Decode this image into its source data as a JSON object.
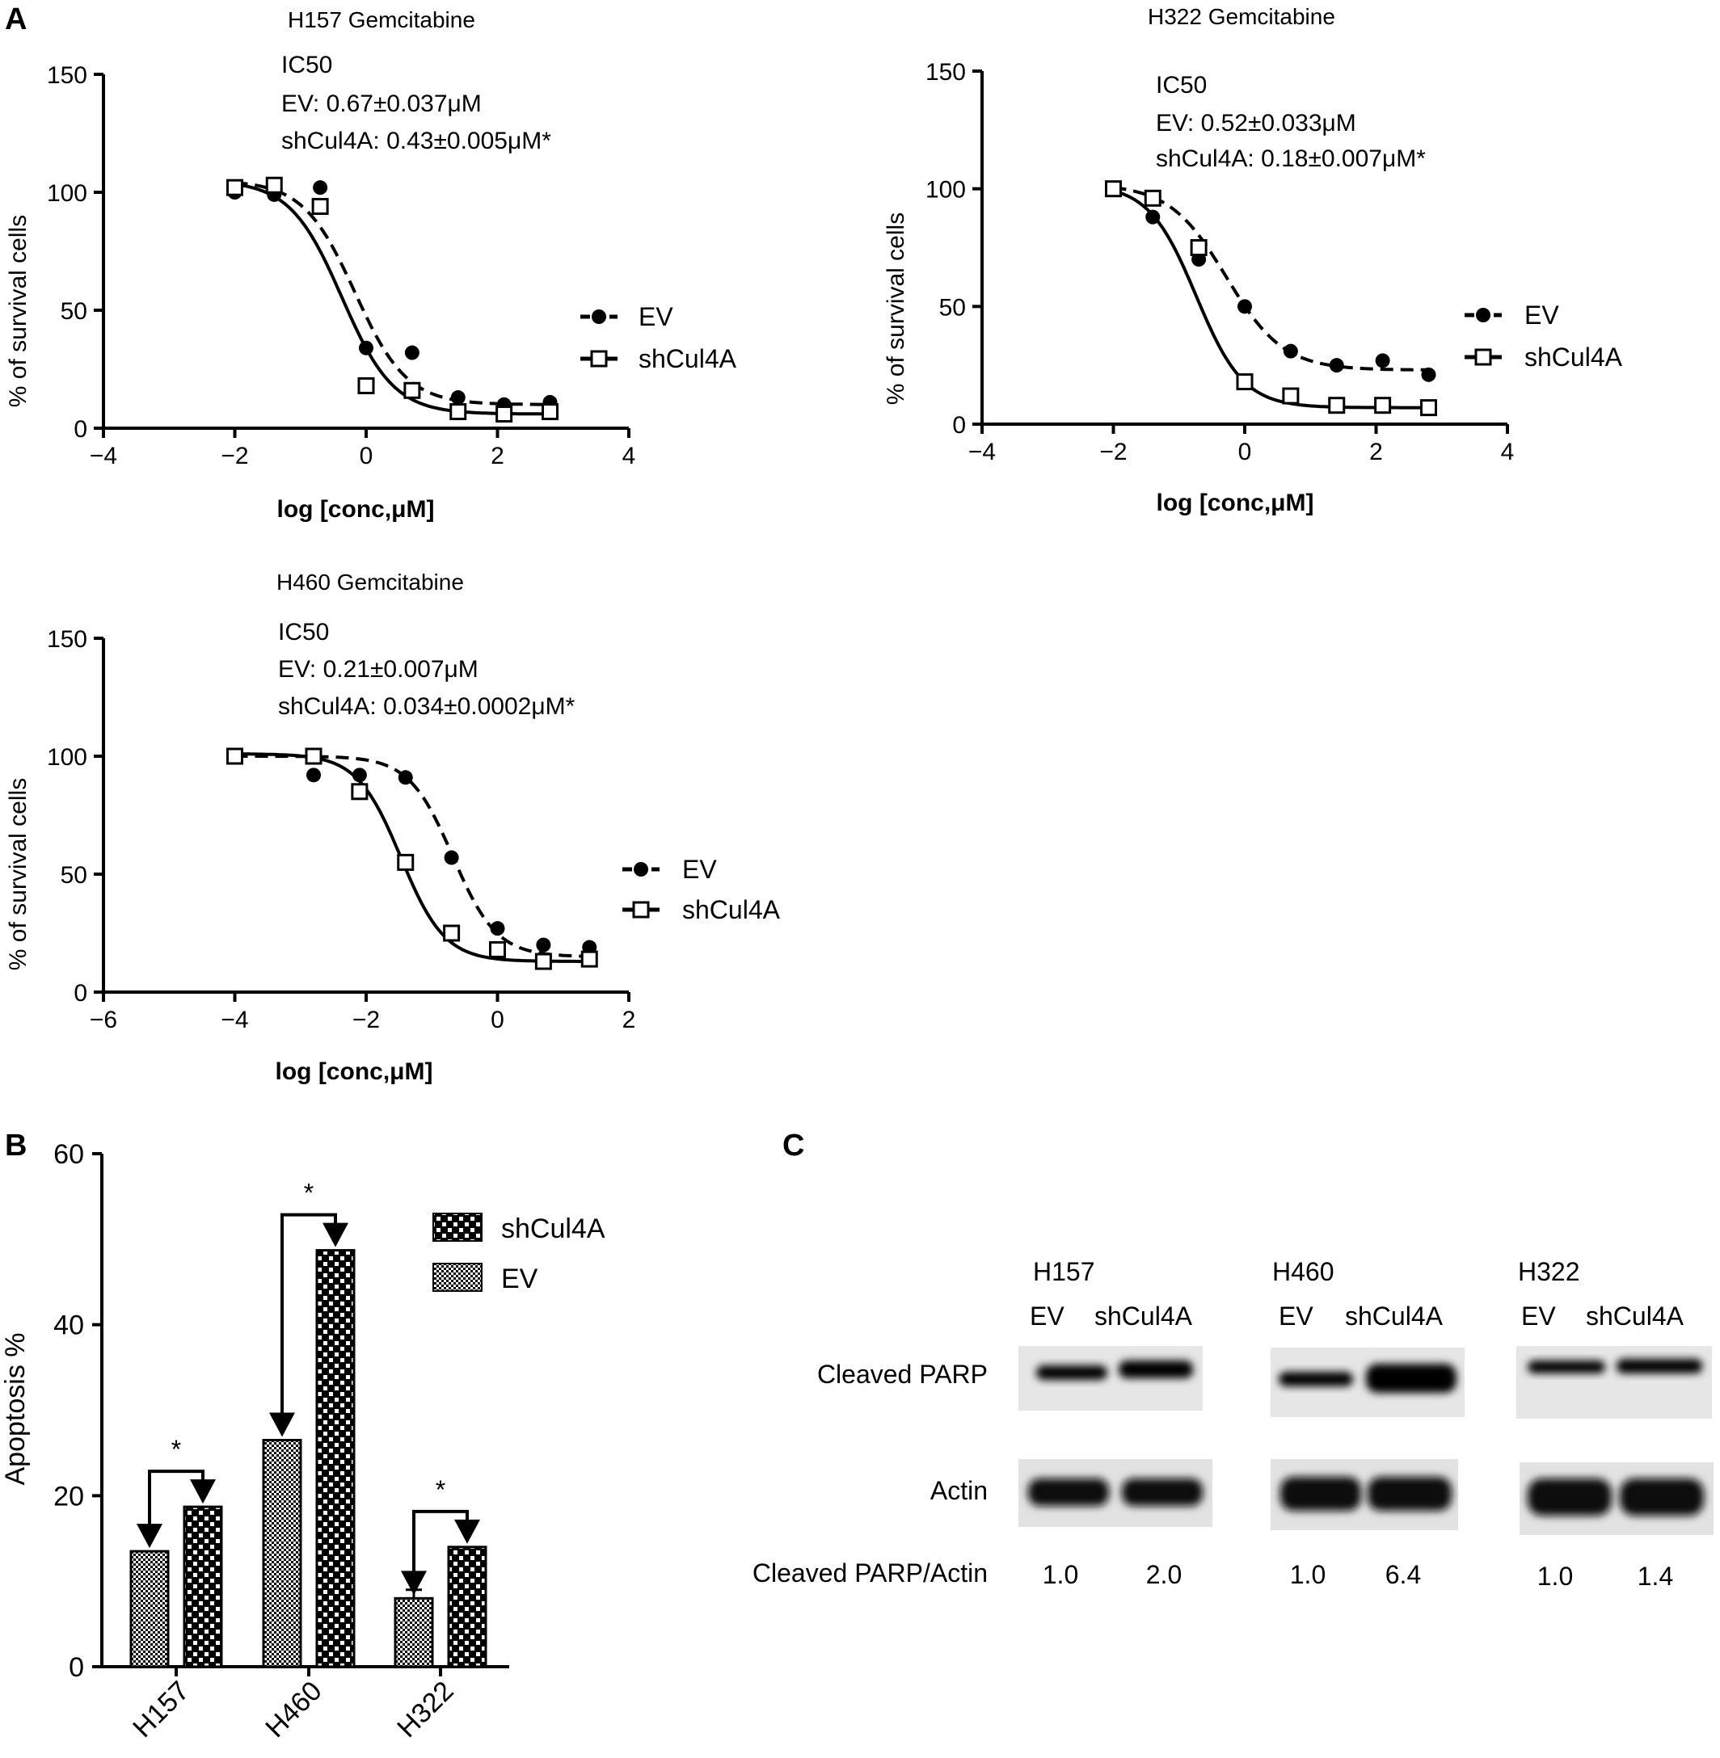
{
  "panels": {
    "a_letter": "A",
    "b_letter": "B",
    "c_letter": "C"
  },
  "chart_data": [
    {
      "type": "scatter",
      "title": "H157 Gemcitabine",
      "annotation": {
        "heading": "IC50",
        "ev": "EV: 0.67±0.037μM",
        "sh": "shCul4A: 0.43±0.005μM*"
      },
      "xlabel": "log [conc,μM]",
      "ylabel": "% of survival cells",
      "xlim": [
        -4,
        4
      ],
      "ylim": [
        0,
        150
      ],
      "xticks": [
        -4,
        -2,
        0,
        2,
        4
      ],
      "xtick_labels": [
        "−4",
        "−2",
        "0",
        "2",
        "4"
      ],
      "yticks": [
        0,
        50,
        100,
        150
      ],
      "ytick_labels": [
        "0",
        "50",
        "100",
        "150"
      ],
      "legend": "right",
      "series": [
        {
          "name": "EV",
          "marker": "filled-circle",
          "line": "dashed",
          "x": [
            -2,
            -1.4,
            -0.7,
            0,
            0.7,
            1.4,
            2.1,
            2.8
          ],
          "y": [
            100,
            99,
            102,
            34,
            32,
            13,
            10,
            11
          ],
          "fit": {
            "bottom": 10,
            "top": 105,
            "logec50": -0.17,
            "hill": -1.1
          }
        },
        {
          "name": "shCul4A",
          "marker": "open-square",
          "line": "solid",
          "x": [
            -2,
            -1.4,
            -0.7,
            0,
            0.7,
            1.4,
            2.1,
            2.8
          ],
          "y": [
            102,
            103,
            94,
            18,
            16,
            7,
            6,
            7
          ],
          "fit": {
            "bottom": 6,
            "top": 105,
            "logec50": -0.37,
            "hill": -1.1
          }
        }
      ]
    },
    {
      "type": "scatter",
      "title": "H322 Gemcitabine",
      "annotation": {
        "heading": "IC50",
        "ev": "EV: 0.52±0.033μM",
        "sh": "shCul4A: 0.18±0.007μM*"
      },
      "xlabel": "log [conc,μM]",
      "ylabel": "% of survival cells",
      "xlim": [
        -4,
        4
      ],
      "ylim": [
        0,
        150
      ],
      "xticks": [
        -4,
        -2,
        0,
        2,
        4
      ],
      "xtick_labels": [
        "−4",
        "−2",
        "0",
        "2",
        "4"
      ],
      "yticks": [
        0,
        50,
        100,
        150
      ],
      "ytick_labels": [
        "0",
        "50",
        "100",
        "150"
      ],
      "legend": "right",
      "series": [
        {
          "name": "EV",
          "marker": "filled-circle",
          "line": "dashed",
          "x": [
            -2,
            -1.4,
            -0.7,
            0,
            0.7,
            1.4,
            2.1,
            2.8
          ],
          "y": [
            100,
            88,
            70,
            50,
            31,
            25,
            27,
            21
          ],
          "fit": {
            "bottom": 23,
            "top": 102,
            "logec50": -0.28,
            "hill": -1.0
          }
        },
        {
          "name": "shCul4A",
          "marker": "open-square",
          "line": "solid",
          "x": [
            -2,
            -1.4,
            -0.7,
            0,
            0.7,
            1.4,
            2.1,
            2.8
          ],
          "y": [
            100,
            96,
            75,
            18,
            12,
            8,
            8,
            7
          ],
          "fit": {
            "bottom": 7,
            "top": 102,
            "logec50": -0.74,
            "hill": -1.2
          }
        }
      ]
    },
    {
      "type": "scatter",
      "title": "H460 Gemcitabine",
      "annotation": {
        "heading": "IC50",
        "ev": "EV: 0.21±0.007μM",
        "sh": "shCul4A: 0.034±0.0002μM*"
      },
      "xlabel": "log [conc,μM]",
      "ylabel": "% of survival cells",
      "xlim": [
        -6,
        2
      ],
      "ylim": [
        0,
        150
      ],
      "xticks": [
        -6,
        -4,
        -2,
        0,
        2
      ],
      "xtick_labels": [
        "−6",
        "−4",
        "−2",
        "0",
        "2"
      ],
      "yticks": [
        0,
        50,
        100,
        150
      ],
      "ytick_labels": [
        "0",
        "50",
        "100",
        "150"
      ],
      "legend": "right",
      "series": [
        {
          "name": "EV",
          "marker": "filled-circle",
          "line": "dashed",
          "x": [
            -4,
            -2.8,
            -2.1,
            -1.4,
            -0.7,
            0,
            0.7,
            1.4
          ],
          "y": [
            100,
            92,
            92,
            91,
            57,
            27,
            20,
            19
          ],
          "fit": {
            "bottom": 15,
            "top": 100,
            "logec50": -0.68,
            "hill": -1.3
          }
        },
        {
          "name": "shCul4A",
          "marker": "open-square",
          "line": "solid",
          "x": [
            -4,
            -2.8,
            -2.1,
            -1.4,
            -0.7,
            0,
            0.7,
            1.4
          ],
          "y": [
            100,
            100,
            85,
            55,
            25,
            18,
            13,
            14
          ],
          "fit": {
            "bottom": 13,
            "top": 101,
            "logec50": -1.47,
            "hill": -1.3
          }
        }
      ]
    },
    {
      "type": "bar",
      "ylabel": "Apoptosis %",
      "ylim": [
        0,
        60
      ],
      "yticks": [
        0,
        20,
        40,
        60
      ],
      "ytick_labels": [
        "0",
        "20",
        "40",
        "60"
      ],
      "categories": [
        "H157",
        "H460",
        "H322"
      ],
      "legend": "top-right",
      "legend_entries": [
        "shCul4A",
        "EV"
      ],
      "series": [
        {
          "name": "EV",
          "pattern": "fine-dots",
          "values": [
            13.5,
            26.5,
            8
          ],
          "errors": [
            0,
            0,
            1
          ]
        },
        {
          "name": "shCul4A",
          "pattern": "checker",
          "values": [
            18.7,
            48.7,
            14
          ],
          "errors": [
            0,
            0,
            0
          ]
        }
      ],
      "significance": [
        "*",
        "*",
        "*"
      ]
    }
  ],
  "western_blot": {
    "cell_lines": [
      "H157",
      "H460",
      "H322"
    ],
    "lane_labels": [
      "EV",
      "shCul4A"
    ],
    "row_labels": {
      "parp": "Cleaved PARP",
      "actin": "Actin",
      "ratio": "Cleaved PARP/Actin"
    },
    "ratios": [
      [
        "1.0",
        "2.0"
      ],
      [
        "1.0",
        "6.4"
      ],
      [
        "1.0",
        "1.4"
      ]
    ],
    "parp_intensity": [
      [
        0.25,
        0.55
      ],
      [
        0.2,
        0.95
      ],
      [
        0.35,
        0.4
      ]
    ]
  }
}
